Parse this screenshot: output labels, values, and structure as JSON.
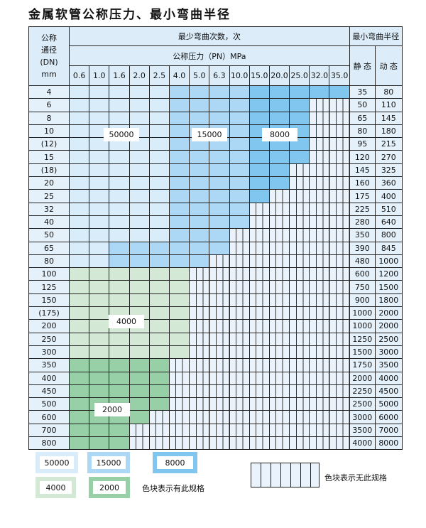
{
  "title": "金属软管公称压力、最小弯曲半径",
  "header": {
    "dn_label": [
      "公称",
      "通径",
      "(DN)",
      "mm"
    ],
    "bend_count": "最少弯曲次数，次",
    "pressure": "公称压力（PN）MPa",
    "pressures": [
      "0.6",
      "1.0",
      "1.6",
      "2.0",
      "2.5",
      "4.0",
      "5.0",
      "6.3",
      "10.0",
      "15.0",
      "20.0",
      "25.0",
      "32.0",
      "35.0"
    ],
    "min_radius": "最小弯曲半径",
    "static": "静 态",
    "dynamic": "动 态"
  },
  "colors": {
    "L": "#d8ecfa",
    "M": "#acd8f5",
    "D": "#80c6ef",
    "G": "#d3e9d5",
    "H": "#97cfa7",
    "E": "#eaf3fb"
  },
  "rows": [
    {
      "dn": "4",
      "pattern": "LLLLLMMMMDDDDD",
      "static": "35",
      "dynamic": "80"
    },
    {
      "dn": "6",
      "pattern": "LLLLLMMMMDDDEE",
      "static": "50",
      "dynamic": "110"
    },
    {
      "dn": "8",
      "pattern": "LLLLLMMMMDDDEE",
      "static": "65",
      "dynamic": "145"
    },
    {
      "dn": "10",
      "pattern": "LLLLLMMMMDDDEE",
      "static": "80",
      "dynamic": "180"
    },
    {
      "dn": "(12)",
      "pattern": "LLLLLMMMMDDDEE",
      "static": "95",
      "dynamic": "215"
    },
    {
      "dn": "15",
      "pattern": "LLLLLMMMMDDDEE",
      "static": "120",
      "dynamic": "270"
    },
    {
      "dn": "(18)",
      "pattern": "LLLLLMMMMDDEEE",
      "static": "145",
      "dynamic": "325"
    },
    {
      "dn": "20",
      "pattern": "LLLLLMMMMDDEEE",
      "static": "160",
      "dynamic": "360"
    },
    {
      "dn": "25",
      "pattern": "LLLLLMMMMDEEEE",
      "static": "175",
      "dynamic": "400"
    },
    {
      "dn": "32",
      "pattern": "LLLLLMMMMEEEEE",
      "static": "225",
      "dynamic": "510"
    },
    {
      "dn": "40",
      "pattern": "LLLLLMMMMEEEEE",
      "static": "280",
      "dynamic": "640"
    },
    {
      "dn": "50",
      "pattern": "LLLLLMMMEEEEEE",
      "static": "350",
      "dynamic": "800"
    },
    {
      "dn": "65",
      "pattern": "LLMMMMMMEEEEEE",
      "static": "390",
      "dynamic": "845"
    },
    {
      "dn": "80",
      "pattern": "LLMMMMMEEEEEEE",
      "static": "480",
      "dynamic": "1000"
    },
    {
      "dn": "100",
      "pattern": "GGGGGGEEEEEEEE",
      "static": "600",
      "dynamic": "1200"
    },
    {
      "dn": "125",
      "pattern": "GGGGGGEEEEEEEE",
      "static": "750",
      "dynamic": "1500"
    },
    {
      "dn": "150",
      "pattern": "GGGGGGEEEEEEEE",
      "static": "900",
      "dynamic": "1800"
    },
    {
      "dn": "(175)",
      "pattern": "GGGGGGEEEEEEEE",
      "static": "1000",
      "dynamic": "2000"
    },
    {
      "dn": "200",
      "pattern": "GGGGGGEEEEEEEE",
      "static": "1000",
      "dynamic": "2000"
    },
    {
      "dn": "250",
      "pattern": "GGGGGGEEEEEEEE",
      "static": "1250",
      "dynamic": "2500"
    },
    {
      "dn": "300",
      "pattern": "GGGGGGEEEEEEEE",
      "static": "1500",
      "dynamic": "3000"
    },
    {
      "dn": "350",
      "pattern": "HHHHHEEEEEEEEE",
      "static": "1750",
      "dynamic": "3500"
    },
    {
      "dn": "400",
      "pattern": "HHHHHEEEEEEEEE",
      "static": "2000",
      "dynamic": "4000"
    },
    {
      "dn": "450",
      "pattern": "HHHHHEEEEEEEEE",
      "static": "2250",
      "dynamic": "4500"
    },
    {
      "dn": "500",
      "pattern": "HHHHHEEEEEEEEE",
      "static": "2500",
      "dynamic": "5000"
    },
    {
      "dn": "600",
      "pattern": "HHHHEEEEEEEEEE",
      "static": "3000",
      "dynamic": "6000"
    },
    {
      "dn": "700",
      "pattern": "HHHEEEEEEEEEEE",
      "static": "3500",
      "dynamic": "7000"
    },
    {
      "dn": "800",
      "pattern": "HHHEEEEEEEEEEE",
      "static": "4000",
      "dynamic": "8000"
    }
  ],
  "region_labels": {
    "L": "50000",
    "M": "15000",
    "D": "8000",
    "G": "4000",
    "H": "2000"
  },
  "legend": {
    "items": [
      {
        "label": "50000",
        "color": "L"
      },
      {
        "label": "15000",
        "color": "M"
      },
      {
        "label": "8000",
        "color": "D"
      },
      {
        "label": "4000",
        "color": "G"
      },
      {
        "label": "2000",
        "color": "H"
      }
    ],
    "has_spec": "色块表示有此规格",
    "no_spec": "色块表示无此规格"
  }
}
